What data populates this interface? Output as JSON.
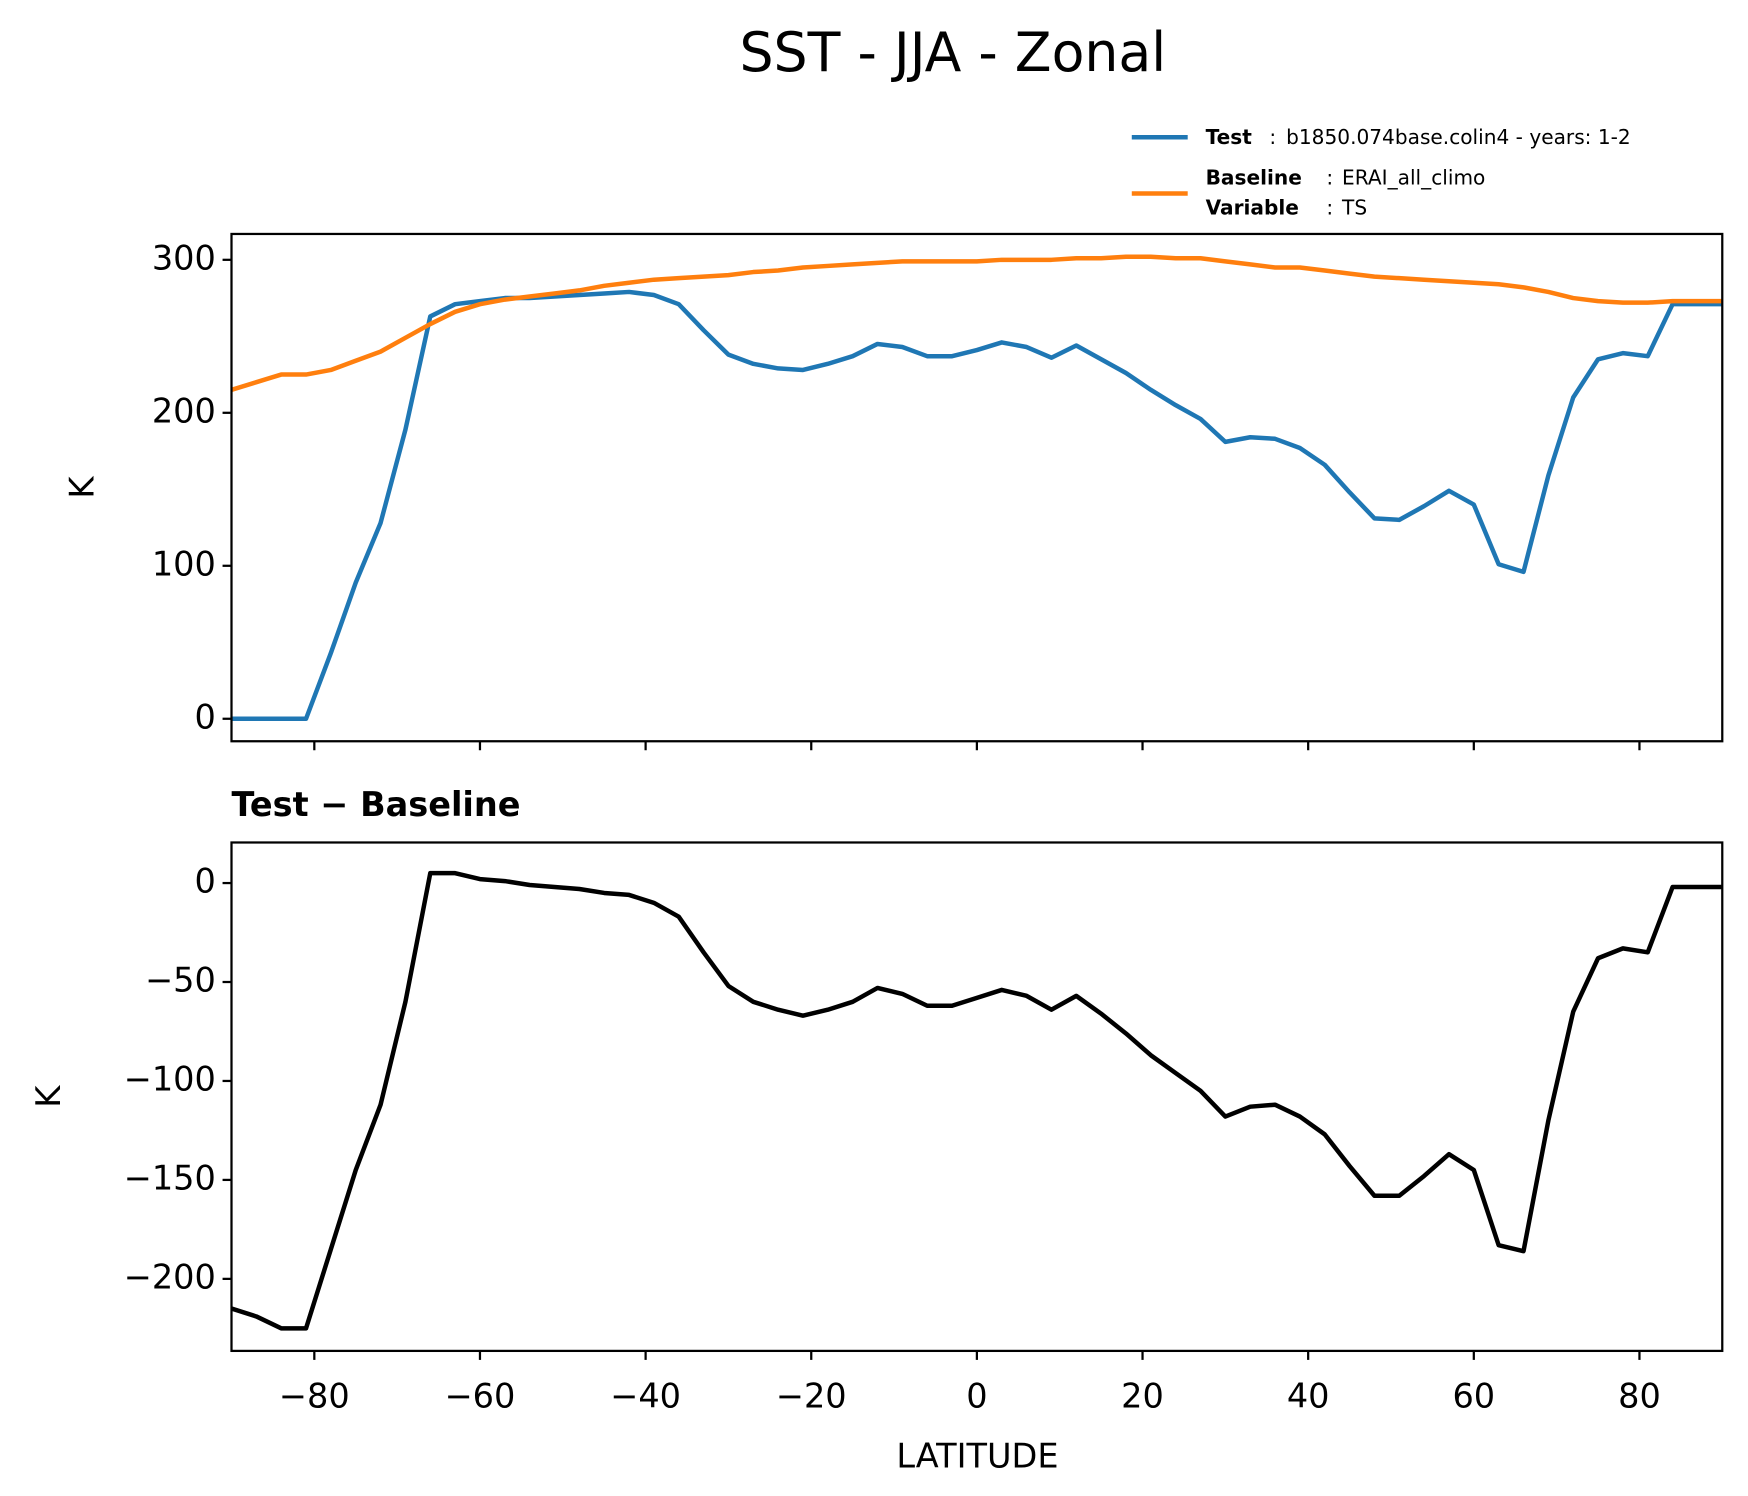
{
  "chart_data": [
    {
      "type": "line",
      "title": "SST - JJA - Zonal",
      "y_label": "K",
      "x": [
        -90,
        -87,
        -84,
        -81,
        -78,
        -75,
        -72,
        -69,
        -66,
        -63,
        -60,
        -57,
        -54,
        -51,
        -48,
        -45,
        -42,
        -39,
        -36,
        -33,
        -30,
        -27,
        -24,
        -21,
        -18,
        -15,
        -12,
        -9,
        -6,
        -3,
        0,
        3,
        6,
        9,
        12,
        15,
        18,
        21,
        24,
        27,
        30,
        33,
        36,
        39,
        42,
        45,
        48,
        51,
        54,
        57,
        60,
        63,
        66,
        69,
        72,
        75,
        78,
        81,
        84,
        87,
        90
      ],
      "series": [
        {
          "name": "Test",
          "label": "b1850.074base.colin4 - years: 1-2",
          "color": "#1f77b4",
          "values": [
            0,
            0,
            0,
            0,
            43,
            89,
            128,
            189,
            263,
            271,
            273,
            275,
            275,
            276,
            277,
            278,
            279,
            277,
            271,
            254,
            238,
            232,
            229,
            228,
            232,
            237,
            245,
            243,
            237,
            237,
            241,
            246,
            243,
            236,
            244,
            235,
            226,
            215,
            205,
            196,
            181,
            184,
            183,
            177,
            166,
            148,
            131,
            130,
            139,
            149,
            140,
            101,
            96,
            159,
            210,
            235,
            239,
            237,
            271,
            271,
            271
          ]
        },
        {
          "name": "Baseline",
          "label": "ERAI_all_climo",
          "color": "#ff7f0e",
          "values": [
            215,
            220,
            225,
            225,
            228,
            234,
            240,
            249,
            258,
            266,
            271,
            274,
            276,
            278,
            280,
            283,
            285,
            287,
            288,
            289,
            290,
            292,
            293,
            295,
            296,
            297,
            298,
            299,
            299,
            299,
            299,
            300,
            300,
            300,
            301,
            301,
            302,
            302,
            301,
            301,
            299,
            297,
            295,
            295,
            293,
            291,
            289,
            288,
            287,
            286,
            285,
            284,
            282,
            279,
            275,
            273,
            272,
            272,
            273,
            273,
            273
          ]
        }
      ],
      "legend_variable": {
        "name": "Variable",
        "label": "TS"
      },
      "xlim": [
        -90,
        90
      ],
      "xticks": [
        -80,
        -60,
        -40,
        -20,
        0,
        20,
        40,
        60,
        80
      ],
      "ylim": [
        -14.7,
        316.9
      ],
      "yticks": [
        0,
        100,
        200,
        300
      ]
    },
    {
      "type": "line",
      "title": "Test − Baseline",
      "y_label": "K",
      "x_label": "LATITUDE",
      "x": [
        -90,
        -87,
        -84,
        -81,
        -78,
        -75,
        -72,
        -69,
        -66,
        -63,
        -60,
        -57,
        -54,
        -51,
        -48,
        -45,
        -42,
        -39,
        -36,
        -33,
        -30,
        -27,
        -24,
        -21,
        -18,
        -15,
        -12,
        -9,
        -6,
        -3,
        0,
        3,
        6,
        9,
        12,
        15,
        18,
        21,
        24,
        27,
        30,
        33,
        36,
        39,
        42,
        45,
        48,
        51,
        54,
        57,
        60,
        63,
        66,
        69,
        72,
        75,
        78,
        81,
        84,
        87,
        90
      ],
      "series": [
        {
          "color": "#000000",
          "values": [
            -215,
            -219,
            -225,
            -225,
            -185,
            -145,
            -112,
            -60,
            5,
            5,
            2,
            1,
            -1,
            -2,
            -3,
            -5,
            -6,
            -10,
            -17,
            -35,
            -52,
            -60,
            -64,
            -67,
            -64,
            -60,
            -53,
            -56,
            -62,
            -62,
            -58,
            -54,
            -57,
            -64,
            -57,
            -66,
            -76,
            -87,
            -96,
            -105,
            -118,
            -113,
            -112,
            -118,
            -127,
            -143,
            -158,
            -158,
            -148,
            -137,
            -145,
            -183,
            -186,
            -120,
            -65,
            -38,
            -33,
            -35,
            -2,
            -2,
            -2
          ]
        }
      ],
      "xlim": [
        -90,
        90
      ],
      "xticks": [
        {
          "value": -80,
          "label": "−80"
        },
        {
          "value": -60,
          "label": "−60"
        },
        {
          "value": -40,
          "label": "−40"
        },
        {
          "value": -20,
          "label": "−20"
        },
        0,
        20,
        40,
        60,
        80
      ],
      "ylim": [
        -236.4,
        20.5
      ],
      "yticks": [
        {
          "value": -200,
          "label": "−200"
        },
        {
          "value": -150,
          "label": "−150"
        },
        {
          "value": -100,
          "label": "−100"
        },
        {
          "value": -50,
          "label": "−50"
        },
        0
      ]
    }
  ]
}
